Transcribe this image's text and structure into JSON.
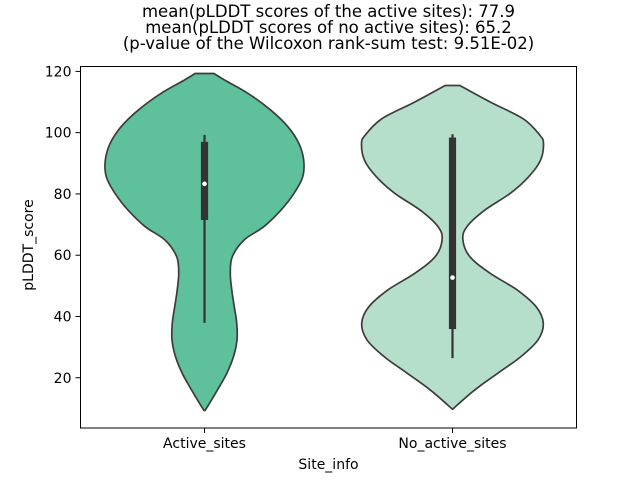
{
  "title": {
    "line1": "mean(pLDDT scores of the active sites): 77.9",
    "line2": "mean(pLDDT scores of no active sites): 65.2",
    "line3": "(p-value of the Wilcoxon rank-sum test: 9.51E-02)"
  },
  "chart_data": {
    "type": "violin",
    "xlabel": "Site_info",
    "ylabel": "pLDDT_score",
    "ylim": [
      3.6,
      121.6
    ],
    "yticks": [
      20,
      40,
      60,
      80,
      100,
      120
    ],
    "categories": [
      "Active_sites",
      "No_active_sites"
    ],
    "grid": false,
    "edge_color": "#3c3c3c",
    "inner_box_color": "#333333",
    "median_dot_color": "#ffffff",
    "stats": {
      "mean_active_sites": 77.9,
      "mean_no_active_sites": 65.2,
      "wilcoxon_p_value": "9.51E-02"
    },
    "series": [
      {
        "name": "Active_sites",
        "fill": "#5fc19c",
        "boxplot": {
          "whisker_low": 37.9,
          "q1": 71.5,
          "median": 83.3,
          "q3": 97.0,
          "whisker_high": 99.3
        },
        "profile": [
          [
            119.3,
            0.038
          ],
          [
            117.0,
            0.085
          ],
          [
            112.7,
            0.178
          ],
          [
            107.3,
            0.268
          ],
          [
            101.9,
            0.337
          ],
          [
            96.4,
            0.381
          ],
          [
            91.0,
            0.4
          ],
          [
            85.6,
            0.396
          ],
          [
            80.2,
            0.361
          ],
          [
            74.7,
            0.308
          ],
          [
            69.3,
            0.239
          ],
          [
            65.0,
            0.16
          ],
          [
            59.5,
            0.112
          ],
          [
            54.1,
            0.104
          ],
          [
            48.7,
            0.11
          ],
          [
            43.2,
            0.12
          ],
          [
            37.8,
            0.13
          ],
          [
            32.4,
            0.131
          ],
          [
            26.9,
            0.117
          ],
          [
            21.5,
            0.09
          ],
          [
            16.1,
            0.053
          ],
          [
            10.6,
            0.012
          ],
          [
            9.3,
            0.002
          ]
        ]
      },
      {
        "name": "No_active_sites",
        "fill": "#b5dfcb",
        "boxplot": {
          "whisker_low": 26.4,
          "q1": 35.9,
          "median": 52.7,
          "q3": 98.4,
          "whisker_high": 99.5
        },
        "profile": [
          [
            115.4,
            0.03
          ],
          [
            110.0,
            0.152
          ],
          [
            104.6,
            0.284
          ],
          [
            99.2,
            0.352
          ],
          [
            96.4,
            0.367
          ],
          [
            91.0,
            0.355
          ],
          [
            85.6,
            0.307
          ],
          [
            80.2,
            0.233
          ],
          [
            74.7,
            0.13
          ],
          [
            69.3,
            0.058
          ],
          [
            65.0,
            0.042
          ],
          [
            59.5,
            0.07
          ],
          [
            54.1,
            0.152
          ],
          [
            48.7,
            0.26
          ],
          [
            43.2,
            0.337
          ],
          [
            37.8,
            0.366
          ],
          [
            32.4,
            0.345
          ],
          [
            26.9,
            0.276
          ],
          [
            21.5,
            0.183
          ],
          [
            16.1,
            0.091
          ],
          [
            10.6,
            0.012
          ],
          [
            9.8,
            0.002
          ]
        ]
      }
    ]
  }
}
